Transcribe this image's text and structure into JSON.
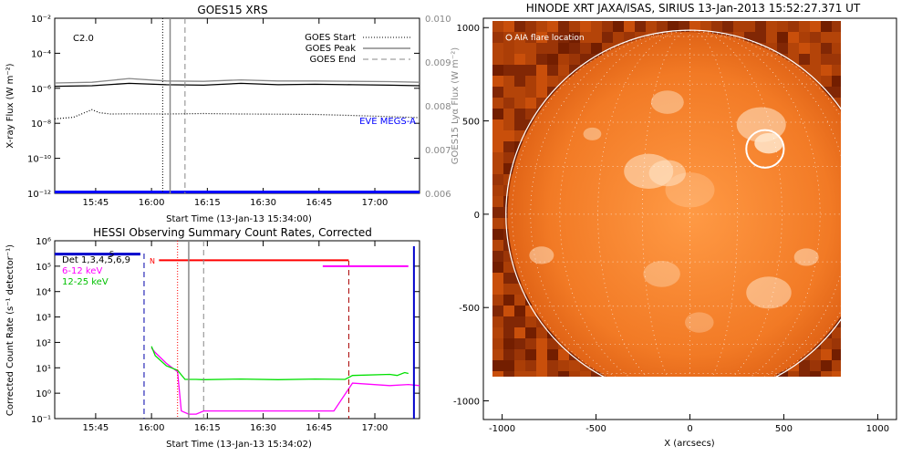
{
  "chart_data": [
    {
      "type": "line",
      "title": "GOES15 XRS",
      "xlabel": "Start Time (13-Jan-13 15:34:00)",
      "ylabel": "X-ray Flux (W m⁻²)",
      "y2label": "GOES15 Lyα Flux (W m⁻²)",
      "flare_class": "C2.0",
      "x_ticks": [
        "15:45",
        "16:00",
        "16:15",
        "16:30",
        "16:45",
        "17:00"
      ],
      "x_range_minutes": [
        0,
        98
      ],
      "ylim": [
        1e-12,
        0.01
      ],
      "y_scale": "log",
      "y_ticks": [
        "10⁻²",
        "10⁻⁴",
        "10⁻⁶",
        "10⁻⁸",
        "10⁻¹⁰",
        "10⁻¹²"
      ],
      "y2lim": [
        0.006,
        0.01
      ],
      "y2_ticks": [
        "0.010",
        "0.009",
        "0.008",
        "0.007",
        "0.006"
      ],
      "legend": [
        "GOES Start",
        "GOES Peak",
        "GOES End"
      ],
      "legend_position": "top-right",
      "markers_minutes": {
        "start": 29,
        "peak": 31,
        "end": 35
      },
      "annotation": "EVE MEGS-A",
      "series": [
        {
          "name": "",
          "color": "#000000",
          "style": "solid",
          "x": [
            0,
            10,
            20,
            30,
            40,
            50,
            60,
            70,
            80,
            90,
            98
          ],
          "y": [
            1.3e-06,
            1.4e-06,
            1.9e-06,
            1.6e-06,
            1.5e-06,
            1.9e-06,
            1.6e-06,
            1.7e-06,
            1.6e-06,
            1.5e-06,
            1.4e-06
          ]
        },
        {
          "name": "",
          "color": "#888888",
          "style": "solid",
          "x": [
            0,
            10,
            20,
            30,
            40,
            50,
            60,
            70,
            80,
            90,
            98
          ],
          "y": [
            2e-06,
            2.2e-06,
            3.6e-06,
            2.6e-06,
            2.5e-06,
            3e-06,
            2.6e-06,
            2.6e-06,
            2.5e-06,
            2.4e-06,
            2.2e-06
          ]
        },
        {
          "name": "",
          "color": "#000000",
          "style": "dotted",
          "x": [
            0,
            5,
            10,
            12,
            15,
            20,
            30,
            40,
            50,
            60,
            70,
            80,
            90,
            98
          ],
          "y": [
            1.8e-08,
            2.2e-08,
            6e-08,
            4e-08,
            3.4e-08,
            3.5e-08,
            3.4e-08,
            3.6e-08,
            3.4e-08,
            3.3e-08,
            3.2e-08,
            2.8e-08,
            2.4e-08,
            2.1e-08
          ]
        },
        {
          "name": "EVE MEGS-A",
          "color": "#0000ff",
          "style": "solid",
          "x": [
            0,
            98
          ],
          "y": [
            1.2e-12,
            1.2e-12
          ]
        }
      ]
    },
    {
      "type": "line",
      "title": "HESSI Observing Summary Count Rates, Corrected",
      "xlabel": "Start Time (13-Jan-13 15:34:02)",
      "ylabel": "Corrected Count Rate (s⁻¹ detector⁻¹)",
      "x_ticks": [
        "15:45",
        "16:00",
        "16:15",
        "16:30",
        "16:45",
        "17:00"
      ],
      "x_range_minutes": [
        0,
        98
      ],
      "ylim": [
        0.1,
        1000000.0
      ],
      "y_scale": "log",
      "y_ticks": [
        "10⁶",
        "10⁵",
        "10⁴",
        "10³",
        "10²",
        "10¹",
        "10⁰",
        "10⁻¹"
      ],
      "legend": [
        "Det 1,3,4,5,6,9",
        "6-12 keV",
        "12-25 keV"
      ],
      "legend_position": "top-left",
      "flags": [
        "S",
        "N"
      ],
      "markers_minutes": {
        "dash1": 24,
        "red": 33,
        "grey_solid": 36,
        "grey_dash": 40,
        "dash2": 79
      },
      "series": [
        {
          "name": "6-12 keV",
          "color": "#ff00ff",
          "style": "solid",
          "x": [
            26,
            27,
            30,
            33,
            34,
            36,
            38,
            40,
            55,
            70,
            75,
            80,
            90,
            95,
            98
          ],
          "y": [
            60,
            40,
            15,
            7,
            0.2,
            0.15,
            0.15,
            0.2,
            0.2,
            0.2,
            0.2,
            2.5,
            2,
            2.2,
            2
          ]
        },
        {
          "name": "12-25 keV",
          "color": "#00e000",
          "style": "solid",
          "x": [
            26,
            27,
            30,
            33,
            35,
            38,
            40,
            50,
            60,
            70,
            78,
            80,
            90,
            92,
            94,
            95
          ],
          "y": [
            70,
            30,
            12,
            8,
            3.5,
            3.5,
            3.4,
            3.6,
            3.4,
            3.6,
            3.5,
            5,
            5.5,
            5,
            6.5,
            6
          ]
        },
        {
          "name": "Det 1,3,4,5,6,9",
          "color": "#0000cc",
          "style": "solid",
          "x": [
            0,
            23
          ],
          "y": [
            300000.0,
            300000.0
          ]
        },
        {
          "name": "",
          "color": "#ff0000",
          "style": "solid",
          "x": [
            28,
            79
          ],
          "y": [
            170000.0,
            170000.0
          ]
        }
      ]
    },
    {
      "type": "scatter",
      "title": "HINODE XRT JAXA/ISAS, SIRIUS 13-Jan-2013 15:52:27.371 UT",
      "xlabel": "X (arcsecs)",
      "ylabel": "",
      "xlim": [
        -1100,
        1100
      ],
      "ylim": [
        -1100,
        1050
      ],
      "x_ticks": [
        "-1000",
        "-500",
        "0",
        "500",
        "1000"
      ],
      "y_ticks": [
        "1000",
        "500",
        "0",
        "-500",
        "-1000"
      ],
      "annotation": "AIA flare location",
      "flare_location_arcsec": [
        400,
        350
      ],
      "solar_radius_arcsec": 980
    }
  ]
}
